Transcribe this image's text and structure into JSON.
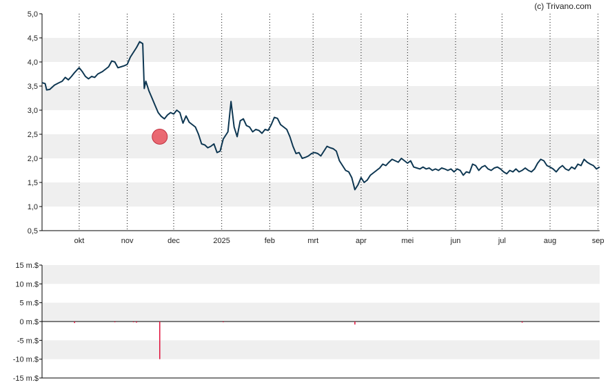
{
  "copyright": "(c) Trivano.com",
  "colors": {
    "price_line": "#0d3651",
    "band": "#efefef",
    "marker": "#e8505b",
    "volume_bar": "#e0103a",
    "axis": "#000000",
    "grid": "#000000"
  },
  "chart_data": [
    {
      "type": "line",
      "title": "",
      "xlabel": "",
      "ylabel": "",
      "ylim": [
        0.5,
        5.0
      ],
      "yticks": [
        "5,0",
        "4,5",
        "4,0",
        "3,5",
        "3,0",
        "2,5",
        "2,0",
        "1,5",
        "1,0",
        "0,5"
      ],
      "xticks": [
        "okt",
        "nov",
        "dec",
        "2025",
        "feb",
        "mrt",
        "apr",
        "mei",
        "jun",
        "jul",
        "aug",
        "sep"
      ],
      "grid": "vertical dotted at month ticks, alternating horizontal bands",
      "legend": "none",
      "x_range": [
        "2024-09-07",
        "2025-09-02"
      ],
      "series": [
        {
          "points": [
            [
              "2024-09-07",
              3.57
            ],
            [
              "2024-09-09",
              3.55
            ],
            [
              "2024-09-10",
              3.42
            ],
            [
              "2024-09-12",
              3.43
            ],
            [
              "2024-09-15",
              3.52
            ],
            [
              "2024-09-18",
              3.57
            ],
            [
              "2024-09-20",
              3.6
            ],
            [
              "2024-09-22",
              3.68
            ],
            [
              "2024-09-24",
              3.63
            ],
            [
              "2024-09-26",
              3.7
            ],
            [
              "2024-09-28",
              3.78
            ],
            [
              "2024-09-30",
              3.85
            ],
            [
              "2024-10-01",
              3.88
            ],
            [
              "2024-10-03",
              3.8
            ],
            [
              "2024-10-05",
              3.7
            ],
            [
              "2024-10-07",
              3.65
            ],
            [
              "2024-10-09",
              3.7
            ],
            [
              "2024-10-11",
              3.68
            ],
            [
              "2024-10-13",
              3.75
            ],
            [
              "2024-10-16",
              3.8
            ],
            [
              "2024-10-18",
              3.85
            ],
            [
              "2024-10-20",
              3.9
            ],
            [
              "2024-10-22",
              4.02
            ],
            [
              "2024-10-24",
              4.0
            ],
            [
              "2024-10-26",
              3.88
            ],
            [
              "2024-10-28",
              3.9
            ],
            [
              "2024-10-30",
              3.92
            ],
            [
              "2024-11-01",
              3.95
            ],
            [
              "2024-11-03",
              4.1
            ],
            [
              "2024-11-05",
              4.2
            ],
            [
              "2024-11-07",
              4.3
            ],
            [
              "2024-11-09",
              4.42
            ],
            [
              "2024-11-11",
              4.38
            ],
            [
              "2024-11-12",
              3.45
            ],
            [
              "2024-11-13",
              3.6
            ],
            [
              "2024-11-15",
              3.4
            ],
            [
              "2024-11-17",
              3.25
            ],
            [
              "2024-11-19",
              3.1
            ],
            [
              "2024-11-21",
              2.95
            ],
            [
              "2024-11-23",
              2.87
            ],
            [
              "2024-11-25",
              2.82
            ],
            [
              "2024-11-27",
              2.9
            ],
            [
              "2024-11-29",
              2.95
            ],
            [
              "2024-12-01",
              2.92
            ],
            [
              "2024-12-03",
              3.0
            ],
            [
              "2024-12-05",
              2.95
            ],
            [
              "2024-12-07",
              2.73
            ],
            [
              "2024-12-09",
              2.88
            ],
            [
              "2024-12-11",
              2.75
            ],
            [
              "2024-12-13",
              2.7
            ],
            [
              "2024-12-15",
              2.65
            ],
            [
              "2024-12-17",
              2.5
            ],
            [
              "2024-12-19",
              2.3
            ],
            [
              "2024-12-21",
              2.28
            ],
            [
              "2024-12-23",
              2.22
            ],
            [
              "2024-12-25",
              2.25
            ],
            [
              "2024-12-27",
              2.3
            ],
            [
              "2024-12-29",
              2.12
            ],
            [
              "2024-12-31",
              2.15
            ],
            [
              "2025-01-02",
              2.4
            ],
            [
              "2025-01-05",
              2.55
            ],
            [
              "2025-01-07",
              3.18
            ],
            [
              "2025-01-09",
              2.65
            ],
            [
              "2025-01-11",
              2.45
            ],
            [
              "2025-01-13",
              2.78
            ],
            [
              "2025-01-15",
              2.82
            ],
            [
              "2025-01-17",
              2.68
            ],
            [
              "2025-01-19",
              2.65
            ],
            [
              "2025-01-21",
              2.55
            ],
            [
              "2025-01-23",
              2.6
            ],
            [
              "2025-01-25",
              2.58
            ],
            [
              "2025-01-27",
              2.52
            ],
            [
              "2025-01-29",
              2.6
            ],
            [
              "2025-01-31",
              2.58
            ],
            [
              "2025-02-02",
              2.7
            ],
            [
              "2025-02-04",
              2.85
            ],
            [
              "2025-02-06",
              2.83
            ],
            [
              "2025-02-08",
              2.7
            ],
            [
              "2025-02-10",
              2.65
            ],
            [
              "2025-02-12",
              2.6
            ],
            [
              "2025-02-14",
              2.45
            ],
            [
              "2025-02-16",
              2.25
            ],
            [
              "2025-02-18",
              2.1
            ],
            [
              "2025-02-20",
              2.12
            ],
            [
              "2025-02-22",
              2.0
            ],
            [
              "2025-02-24",
              2.02
            ],
            [
              "2025-02-26",
              2.05
            ],
            [
              "2025-02-28",
              2.1
            ],
            [
              "2025-03-02",
              2.12
            ],
            [
              "2025-03-04",
              2.1
            ],
            [
              "2025-03-06",
              2.05
            ],
            [
              "2025-03-08",
              2.15
            ],
            [
              "2025-03-10",
              2.25
            ],
            [
              "2025-03-12",
              2.22
            ],
            [
              "2025-03-14",
              2.2
            ],
            [
              "2025-03-16",
              2.15
            ],
            [
              "2025-03-18",
              1.95
            ],
            [
              "2025-03-20",
              1.85
            ],
            [
              "2025-03-22",
              1.75
            ],
            [
              "2025-03-24",
              1.72
            ],
            [
              "2025-03-26",
              1.6
            ],
            [
              "2025-03-28",
              1.35
            ],
            [
              "2025-03-30",
              1.45
            ],
            [
              "2025-04-01",
              1.6
            ],
            [
              "2025-04-03",
              1.5
            ],
            [
              "2025-04-05",
              1.55
            ],
            [
              "2025-04-07",
              1.65
            ],
            [
              "2025-04-09",
              1.7
            ],
            [
              "2025-04-11",
              1.75
            ],
            [
              "2025-04-13",
              1.8
            ],
            [
              "2025-04-15",
              1.88
            ],
            [
              "2025-04-17",
              1.85
            ],
            [
              "2025-04-19",
              1.92
            ],
            [
              "2025-04-21",
              1.98
            ],
            [
              "2025-04-23",
              1.95
            ],
            [
              "2025-04-25",
              1.92
            ],
            [
              "2025-04-27",
              2.0
            ],
            [
              "2025-04-29",
              1.95
            ],
            [
              "2025-05-01",
              1.9
            ],
            [
              "2025-05-03",
              1.95
            ],
            [
              "2025-05-05",
              1.82
            ],
            [
              "2025-05-07",
              1.8
            ],
            [
              "2025-05-09",
              1.78
            ],
            [
              "2025-05-11",
              1.82
            ],
            [
              "2025-05-13",
              1.78
            ],
            [
              "2025-05-15",
              1.8
            ],
            [
              "2025-05-17",
              1.75
            ],
            [
              "2025-05-19",
              1.78
            ],
            [
              "2025-05-21",
              1.75
            ],
            [
              "2025-05-23",
              1.8
            ],
            [
              "2025-05-25",
              1.78
            ],
            [
              "2025-05-27",
              1.75
            ],
            [
              "2025-05-29",
              1.78
            ],
            [
              "2025-05-31",
              1.72
            ],
            [
              "2025-06-02",
              1.78
            ],
            [
              "2025-06-04",
              1.75
            ],
            [
              "2025-06-06",
              1.65
            ],
            [
              "2025-06-08",
              1.72
            ],
            [
              "2025-06-10",
              1.7
            ],
            [
              "2025-06-12",
              1.88
            ],
            [
              "2025-06-14",
              1.85
            ],
            [
              "2025-06-16",
              1.75
            ],
            [
              "2025-06-18",
              1.82
            ],
            [
              "2025-06-20",
              1.85
            ],
            [
              "2025-06-22",
              1.78
            ],
            [
              "2025-06-24",
              1.75
            ],
            [
              "2025-06-26",
              1.8
            ],
            [
              "2025-06-28",
              1.82
            ],
            [
              "2025-06-30",
              1.78
            ],
            [
              "2025-07-02",
              1.72
            ],
            [
              "2025-07-04",
              1.68
            ],
            [
              "2025-07-06",
              1.75
            ],
            [
              "2025-07-08",
              1.72
            ],
            [
              "2025-07-10",
              1.78
            ],
            [
              "2025-07-12",
              1.72
            ],
            [
              "2025-07-14",
              1.75
            ],
            [
              "2025-07-16",
              1.8
            ],
            [
              "2025-07-18",
              1.75
            ],
            [
              "2025-07-20",
              1.72
            ],
            [
              "2025-07-22",
              1.78
            ],
            [
              "2025-07-24",
              1.9
            ],
            [
              "2025-07-26",
              1.98
            ],
            [
              "2025-07-28",
              1.95
            ],
            [
              "2025-07-30",
              1.85
            ],
            [
              "2025-08-01",
              1.82
            ],
            [
              "2025-08-03",
              1.78
            ],
            [
              "2025-08-05",
              1.72
            ],
            [
              "2025-08-07",
              1.8
            ],
            [
              "2025-08-09",
              1.85
            ],
            [
              "2025-08-11",
              1.78
            ],
            [
              "2025-08-13",
              1.75
            ],
            [
              "2025-08-15",
              1.82
            ],
            [
              "2025-08-17",
              1.78
            ],
            [
              "2025-08-19",
              1.88
            ],
            [
              "2025-08-21",
              1.85
            ],
            [
              "2025-08-23",
              1.98
            ],
            [
              "2025-08-25",
              1.92
            ],
            [
              "2025-08-27",
              1.88
            ],
            [
              "2025-08-29",
              1.85
            ],
            [
              "2025-08-31",
              1.78
            ],
            [
              "2025-09-02",
              1.82
            ]
          ]
        }
      ],
      "annotations": [
        {
          "type": "marker",
          "date": "2024-11-22",
          "value": 2.45
        }
      ]
    },
    {
      "type": "bar",
      "title": "",
      "xlabel": "",
      "ylabel": "",
      "ylim": [
        -15,
        15
      ],
      "yticks": [
        "15 m.$",
        "10 m.$",
        "5 m.$",
        "0 m.$",
        "-5 m.$",
        "-10 m.$",
        "-15 m.$"
      ],
      "grid": "alternating horizontal bands",
      "legend": "none",
      "bars": [
        {
          "date": "2024-09-28",
          "value": -0.4
        },
        {
          "date": "2024-10-24",
          "value": -0.2
        },
        {
          "date": "2024-11-05",
          "value": -0.2
        },
        {
          "date": "2024-11-07",
          "value": -0.3
        },
        {
          "date": "2024-11-22",
          "value": -10.0
        },
        {
          "date": "2025-01-02",
          "value": -0.2
        },
        {
          "date": "2025-03-28",
          "value": -0.8
        },
        {
          "date": "2025-07-14",
          "value": -0.3
        }
      ]
    }
  ]
}
